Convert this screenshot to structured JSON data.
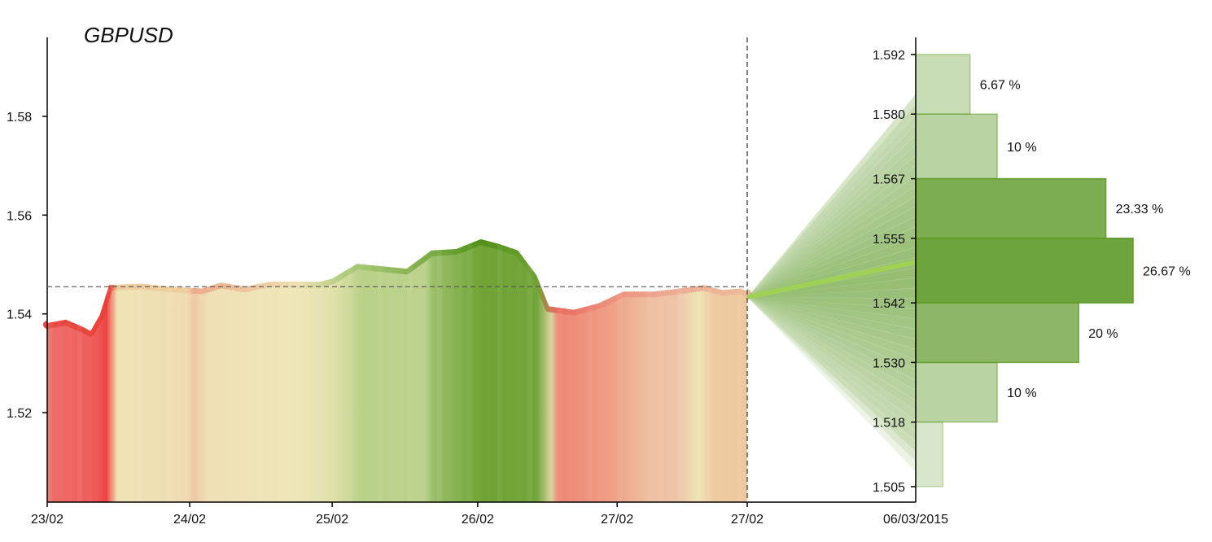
{
  "chart_data": {
    "type": "area",
    "title": "GBPUSD",
    "price": {
      "x_labels": [
        "23/02",
        "24/02",
        "25/02",
        "26/02",
        "27/02",
        "27/02"
      ],
      "y_ticks": [
        "1.58",
        "1.56",
        "1.54",
        "1.52"
      ],
      "ylim": [
        1.5,
        1.597
      ],
      "reference_level": 1.5455,
      "points": [
        [
          0,
          1.5378
        ],
        [
          0.3,
          1.5385
        ],
        [
          0.55,
          1.5372
        ],
        [
          0.7,
          1.5362
        ],
        [
          0.85,
          1.5395
        ],
        [
          1.0,
          1.5455
        ],
        [
          1.5,
          1.5458
        ],
        [
          2.0,
          1.5452
        ],
        [
          2.5,
          1.5448
        ],
        [
          2.8,
          1.546
        ],
        [
          3.2,
          1.5452
        ],
        [
          3.6,
          1.5462
        ],
        [
          4.4,
          1.5462
        ],
        [
          4.6,
          1.5468
        ],
        [
          5.0,
          1.5498
        ],
        [
          5.5,
          1.5492
        ],
        [
          5.8,
          1.5488
        ],
        [
          6.2,
          1.5525
        ],
        [
          6.6,
          1.5528
        ],
        [
          7.0,
          1.5548
        ],
        [
          7.3,
          1.5538
        ],
        [
          7.6,
          1.5525
        ],
        [
          7.9,
          1.5475
        ],
        [
          8.1,
          1.5412
        ],
        [
          8.5,
          1.5405
        ],
        [
          8.9,
          1.5418
        ],
        [
          9.3,
          1.5442
        ],
        [
          9.8,
          1.5442
        ],
        [
          10.2,
          1.5448
        ],
        [
          10.6,
          1.5455
        ],
        [
          10.9,
          1.5445
        ],
        [
          11.2,
          1.5448
        ],
        [
          11.3,
          1.5442
        ]
      ],
      "x_max": 11.3,
      "label_positions": [
        0,
        2.3,
        4.6,
        6.95,
        9.2,
        11.3
      ]
    },
    "forecast": {
      "end_label": "06/03/2015",
      "levels": [
        "1.592",
        "1.580",
        "1.567",
        "1.555",
        "1.542",
        "1.530",
        "1.518",
        "1.505"
      ],
      "level_values": [
        1.592,
        1.58,
        1.567,
        1.555,
        1.542,
        1.53,
        1.518,
        1.505
      ],
      "distribution": [
        {
          "low": 1.58,
          "high": 1.592,
          "pct": 6.67,
          "label": "6.67 %"
        },
        {
          "low": 1.567,
          "high": 1.58,
          "pct": 10,
          "label": "10 %"
        },
        {
          "low": 1.555,
          "high": 1.567,
          "pct": 23.33,
          "label": "23.33 %"
        },
        {
          "low": 1.542,
          "high": 1.555,
          "pct": 26.67,
          "label": "26.67 %"
        },
        {
          "low": 1.53,
          "high": 1.542,
          "pct": 20,
          "label": "20 %"
        },
        {
          "low": 1.518,
          "high": 1.53,
          "pct": 10,
          "label": "10 %"
        },
        {
          "low": 1.505,
          "high": 1.518,
          "pct": 3.33,
          "label": ""
        }
      ],
      "main_target": 1.5502
    },
    "colors": {
      "red": "#ee4a48",
      "orange": "#eec29c",
      "beige": "#efe4b6",
      "light_green": "#bcd18a",
      "green": "#5a9a1e",
      "dark_green": "#4d8c18",
      "histogram_fill": "#5e9a28",
      "highlight_line": "#9fd154",
      "axis": "#000000",
      "dashed": "#555555"
    }
  }
}
